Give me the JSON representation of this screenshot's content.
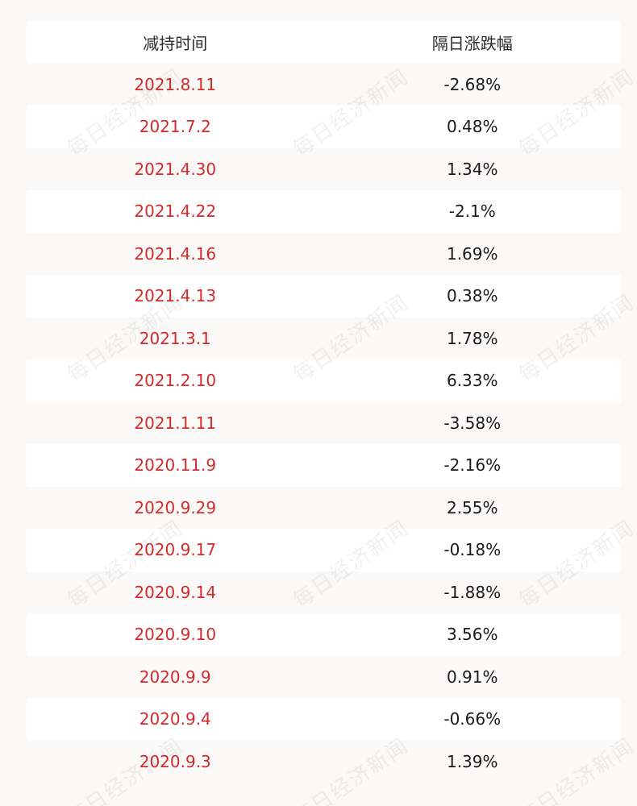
{
  "table": {
    "headers": {
      "date": "减持时间",
      "change": "隔日涨跌幅"
    },
    "rows": [
      {
        "date": "2021.8.11",
        "change": "-2.68%"
      },
      {
        "date": "2021.7.2",
        "change": "0.48%"
      },
      {
        "date": "2021.4.30",
        "change": "1.34%"
      },
      {
        "date": "2021.4.22",
        "change": "-2.1%"
      },
      {
        "date": "2021.4.16",
        "change": "1.69%"
      },
      {
        "date": "2021.4.13",
        "change": "0.38%"
      },
      {
        "date": "2021.3.1",
        "change": "1.78%"
      },
      {
        "date": "2021.2.10",
        "change": "6.33%"
      },
      {
        "date": "2021.1.11",
        "change": "-3.58%"
      },
      {
        "date": "2020.11.9",
        "change": "-2.16%"
      },
      {
        "date": "2020.9.29",
        "change": "2.55%"
      },
      {
        "date": "2020.9.17",
        "change": "-0.18%"
      },
      {
        "date": "2020.9.14",
        "change": "-1.88%"
      },
      {
        "date": "2020.9.10",
        "change": "3.56%"
      },
      {
        "date": "2020.9.9",
        "change": "0.91%"
      },
      {
        "date": "2020.9.4",
        "change": "-0.66%"
      },
      {
        "date": "2020.9.3",
        "change": "1.39%"
      }
    ]
  },
  "watermark": {
    "text": "每日经济新闻"
  },
  "colors": {
    "date_text": "#d42a2a",
    "value_text": "#1a1a1a",
    "row_shaded": "#fbf8f8",
    "row_white": "#ffffff"
  }
}
